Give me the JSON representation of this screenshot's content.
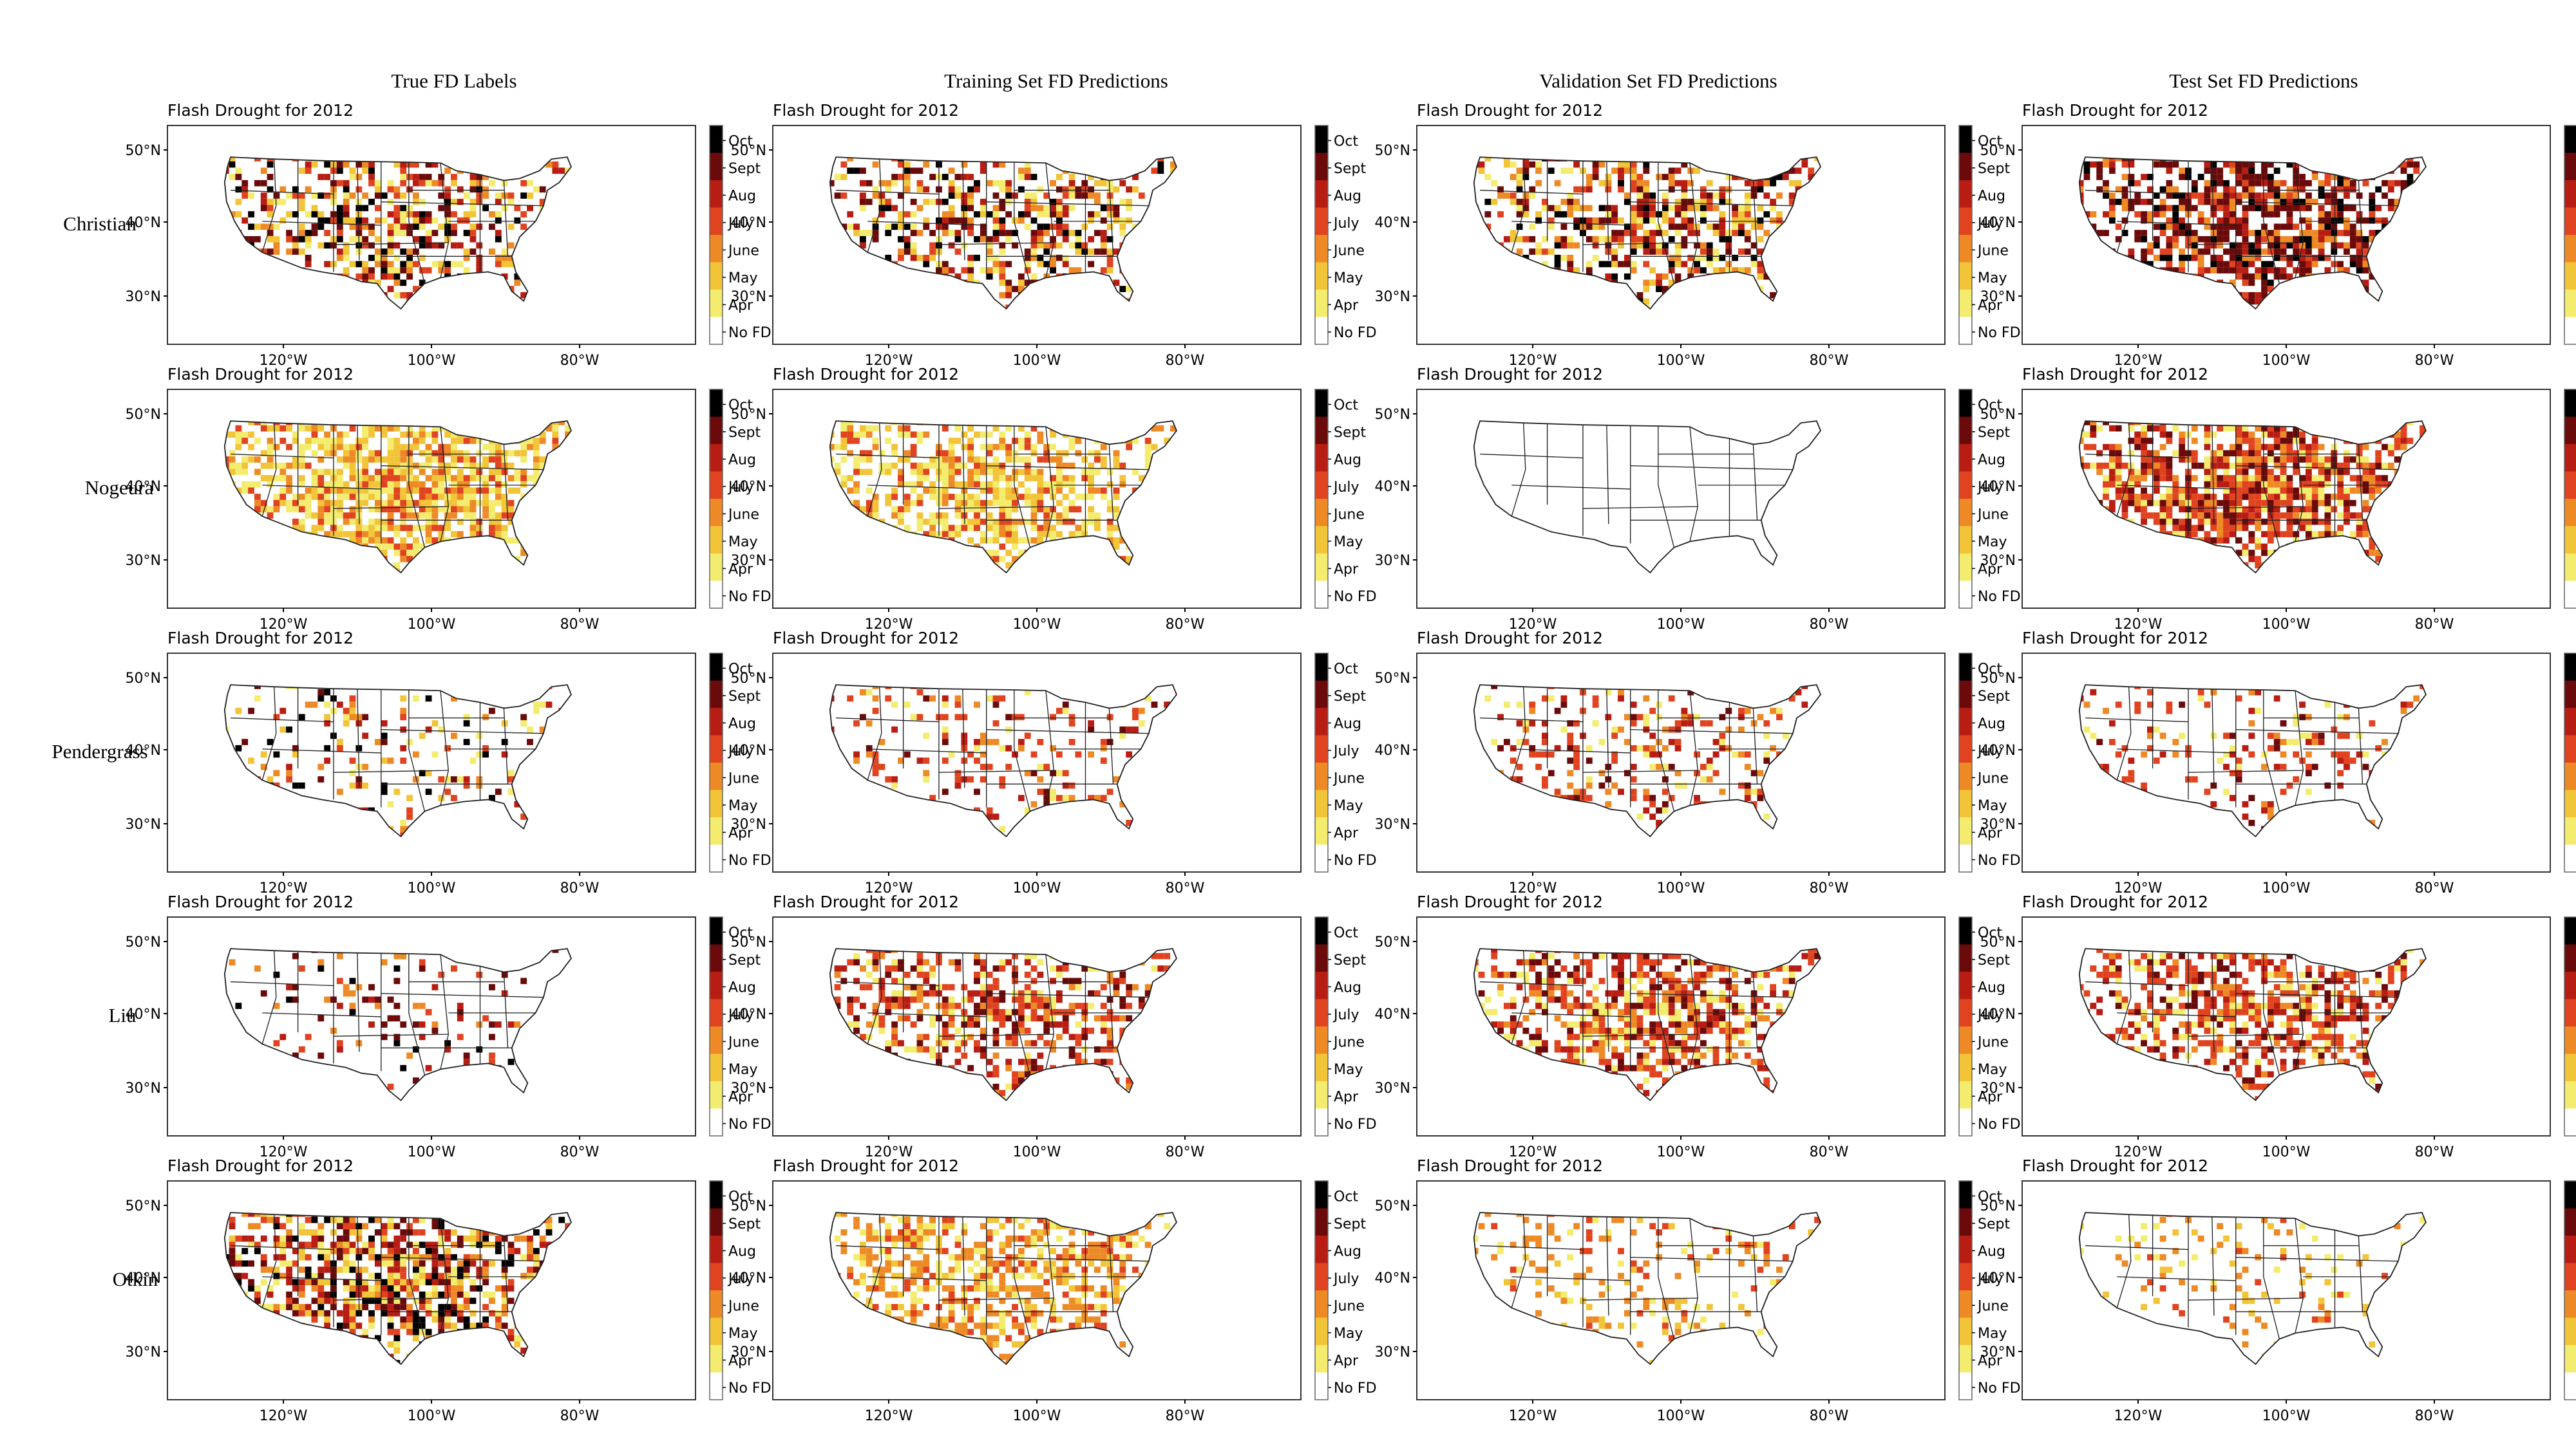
{
  "column_titles": [
    "True FD Labels",
    "Training Set FD Predictions",
    "Validation Set FD Predictions",
    "Test Set FD Predictions"
  ],
  "row_labels": [
    "Christian",
    "Nogeura",
    "Pendergrass",
    "Liu",
    "Otkin"
  ],
  "panel_title": "Flash Drought for 2012",
  "lat_ticks": [
    "50°N",
    "40°N",
    "30°N"
  ],
  "lon_ticks": [
    "120°W",
    "100°W",
    "80°W"
  ],
  "legend": {
    "labels": [
      "Oct",
      "Sept",
      "Aug",
      "July",
      "June",
      "May",
      "Apr",
      "No FD"
    ],
    "colors": [
      "#000000",
      "#6b0a0a",
      "#b81d13",
      "#e0431f",
      "#ee8a26",
      "#f2c438",
      "#f3ec6e",
      "#ffffff"
    ]
  },
  "panels": [
    [
      {
        "intensity": 0.55,
        "tint": "mixed"
      },
      {
        "intensity": 0.55,
        "tint": "mixed"
      },
      {
        "intensity": 0.6,
        "tint": "mixed"
      },
      {
        "intensity": 0.75,
        "tint": "dark"
      }
    ],
    [
      {
        "intensity": 0.85,
        "tint": "yellow"
      },
      {
        "intensity": 0.7,
        "tint": "yellow"
      },
      {
        "intensity": 0.0,
        "tint": "none"
      },
      {
        "intensity": 0.85,
        "tint": "red"
      }
    ],
    [
      {
        "intensity": 0.2,
        "tint": "mixed"
      },
      {
        "intensity": 0.25,
        "tint": "red"
      },
      {
        "intensity": 0.3,
        "tint": "red"
      },
      {
        "intensity": 0.2,
        "tint": "red"
      }
    ],
    [
      {
        "intensity": 0.15,
        "tint": "dark"
      },
      {
        "intensity": 0.55,
        "tint": "red"
      },
      {
        "intensity": 0.65,
        "tint": "red"
      },
      {
        "intensity": 0.6,
        "tint": "red"
      }
    ],
    [
      {
        "intensity": 0.75,
        "tint": "mixed"
      },
      {
        "intensity": 0.6,
        "tint": "orange"
      },
      {
        "intensity": 0.2,
        "tint": "orange"
      },
      {
        "intensity": 0.12,
        "tint": "orange"
      }
    ]
  ]
}
